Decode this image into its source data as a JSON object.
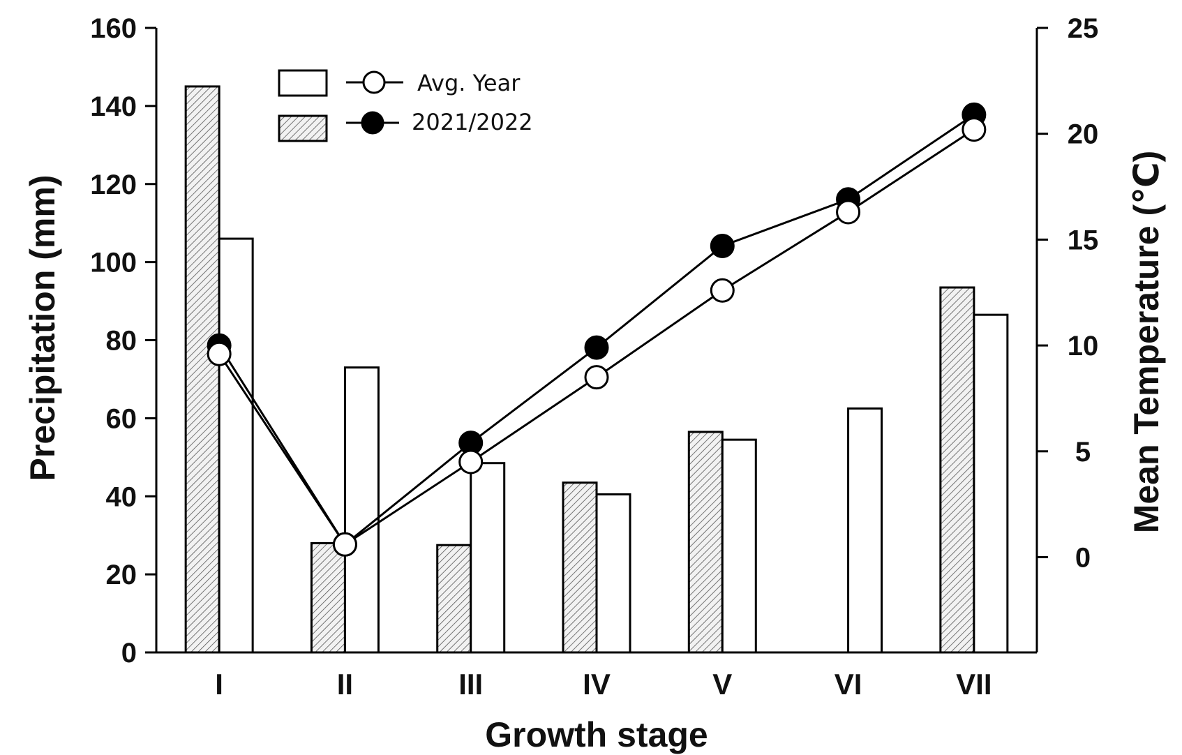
{
  "chart_data": {
    "type": "bar",
    "title": "",
    "xlabel": "Growth stage",
    "ylabel": "Precipitation (mm)",
    "y2label": "Mean Temperature (℃)",
    "categories": [
      "I",
      "II",
      "III",
      "IV",
      "V",
      "VI",
      "VII"
    ],
    "ylim": [
      0,
      160
    ],
    "y_ticks": [
      0,
      20,
      40,
      60,
      80,
      100,
      120,
      140,
      160
    ],
    "y2lim": [
      -4.5,
      25
    ],
    "y2_ticks": [
      0,
      5,
      10,
      15,
      20,
      25
    ],
    "grid": false,
    "legend_position": "top-left",
    "series": [
      {
        "name": "2021/2022",
        "kind": "bar",
        "axis": "left",
        "fill": "hatched",
        "values": [
          145,
          28,
          27.5,
          43.5,
          56.5,
          0,
          93.5
        ]
      },
      {
        "name": "Avg. Year",
        "kind": "bar",
        "axis": "left",
        "fill": "open",
        "values": [
          106,
          73,
          48.5,
          40.5,
          54.5,
          62.5,
          86.5
        ]
      },
      {
        "name": "2021/2022",
        "kind": "line",
        "axis": "right",
        "marker": "filled-circle",
        "values": [
          10,
          0.6,
          5.4,
          9.9,
          14.7,
          16.9,
          20.9
        ]
      },
      {
        "name": "Avg. Year",
        "kind": "line",
        "axis": "right",
        "marker": "open-circle",
        "values": [
          9.6,
          0.6,
          4.5,
          8.5,
          12.6,
          16.3,
          20.2
        ]
      }
    ],
    "legend": [
      {
        "label": "Avg. Year",
        "bar_fill": "open",
        "marker": "open-circle"
      },
      {
        "label": "2021/2022",
        "bar_fill": "hatched",
        "marker": "filled-circle"
      }
    ],
    "colors": {
      "ink": "#000000",
      "hatch": "#555555",
      "background": "#ffffff"
    }
  }
}
